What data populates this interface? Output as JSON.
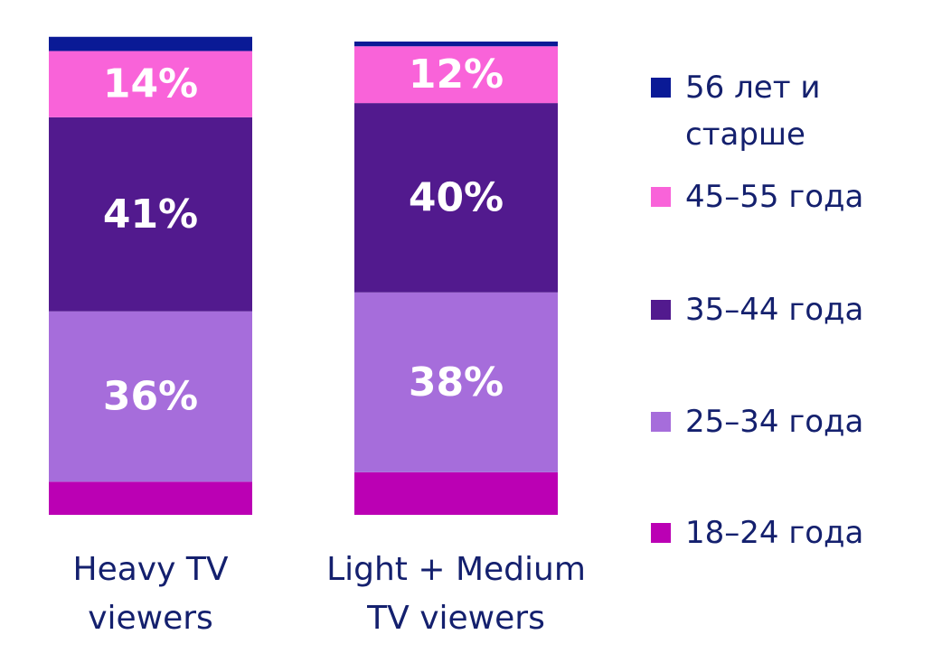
{
  "chart_data": {
    "type": "bar",
    "stacked": true,
    "categories": [
      [
        "Heavy TV",
        "viewers"
      ],
      [
        "Light + Medium",
        "TV viewers"
      ]
    ],
    "series": [
      {
        "name": "18–24 года",
        "color": "#bb00b4",
        "values": [
          7,
          9
        ],
        "labels": [
          "",
          ""
        ]
      },
      {
        "name": "25–34 года",
        "color": "#a66ddb",
        "values": [
          36,
          38
        ],
        "labels": [
          "36%",
          "38%"
        ]
      },
      {
        "name": "35–44 года",
        "color": "#521a8e",
        "values": [
          41,
          40
        ],
        "labels": [
          "41%",
          "40%"
        ]
      },
      {
        "name": "45–55 года",
        "color": "#f963d9",
        "values": [
          14,
          12
        ],
        "labels": [
          "14%",
          "12%"
        ]
      },
      {
        "name": [
          "56 лет и",
          "старше"
        ],
        "color": "#0a1a96",
        "values": [
          3,
          1
        ],
        "labels": [
          "",
          ""
        ]
      }
    ],
    "legend_position": "right",
    "legend_order": [
      4,
      3,
      2,
      1,
      0
    ],
    "ylim": [
      0,
      100
    ],
    "grid": false
  }
}
